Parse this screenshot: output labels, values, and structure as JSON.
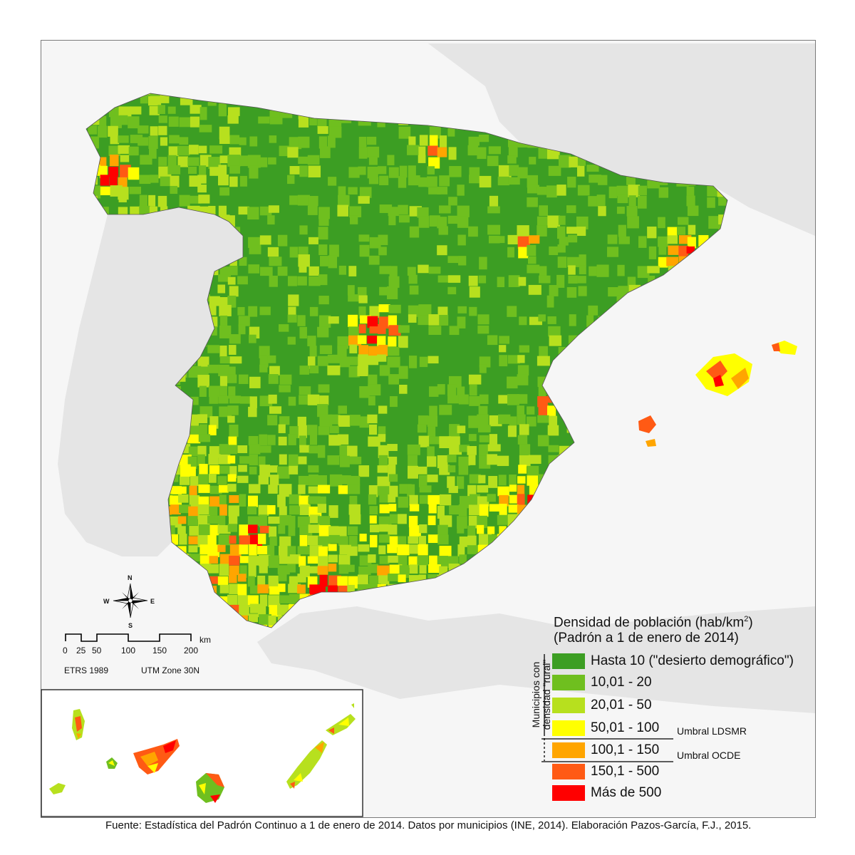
{
  "colors": {
    "sea": "#ffffff",
    "land_other": "#e5e5e5",
    "d1": "#3c9e23",
    "d2": "#6fbf1f",
    "d3": "#b7e01e",
    "d4": "#ffff00",
    "d5": "#ffa500",
    "d6": "#ff5a14",
    "d7": "#ff0000"
  },
  "legend": {
    "title_line1": "Densidad de población (hab/km",
    "title_sup": "2",
    "title_line1_end": ")",
    "title_line2": "(Padrón a 1 de enero de 2014)",
    "rural_label": "Municipios con densidad \"rural\"",
    "items": [
      {
        "label": "Hasta 10 (\"desierto demográfico\")",
        "color": "#3c9e23"
      },
      {
        "label": "10,01 - 20",
        "color": "#6fbf1f"
      },
      {
        "label": "20,01 - 50",
        "color": "#b7e01e"
      },
      {
        "label": "50,01 - 100",
        "color": "#ffff00"
      },
      {
        "label": "100,1 - 150",
        "color": "#ffa500"
      },
      {
        "label": "150,1 - 500",
        "color": "#ff5a14"
      },
      {
        "label": "Más de 500",
        "color": "#ff0000"
      }
    ],
    "threshold_ldsmr": "Umbral LDSMR",
    "threshold_ocde": "Umbral OCDE"
  },
  "compass": {
    "n": "N",
    "s": "S",
    "e": "E",
    "w": "W"
  },
  "scale": {
    "unit": "km",
    "ticks": [
      "0",
      "25",
      "50",
      "100",
      "150",
      "200"
    ],
    "datum": "ETRS 1989",
    "projection": "UTM Zone 30N"
  },
  "source": "Fuente: Estadística del Padrón Continuo a 1 de enero de 2014. Datos por municipios (INE, 2014). Elaboración Pazos-García, F.J., 2015."
}
